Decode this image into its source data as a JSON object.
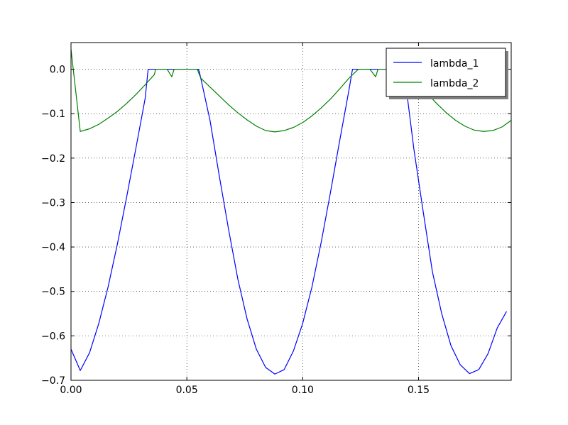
{
  "chart_data": {
    "type": "line",
    "title": "",
    "xlabel": "",
    "ylabel": "",
    "xlim": [
      0.0,
      0.19
    ],
    "ylim": [
      -0.7,
      0.06
    ],
    "x_ticks": [
      0.0,
      0.05,
      0.1,
      0.15
    ],
    "x_tick_labels": [
      "0.00",
      "0.05",
      "0.10",
      "0.15"
    ],
    "y_ticks": [
      0.0,
      -0.1,
      -0.2,
      -0.3,
      -0.4,
      -0.5,
      -0.6,
      -0.7
    ],
    "y_tick_labels": [
      "0.0",
      "−0.1",
      "−0.2",
      "−0.3",
      "−0.4",
      "−0.5",
      "−0.6",
      "−0.7"
    ],
    "grid": true,
    "legend_position": "top-right",
    "series": [
      {
        "name": "lambda_1",
        "color": "#0000ff",
        "points": [
          [
            0.0,
            -0.63
          ],
          [
            0.004,
            -0.678
          ],
          [
            0.008,
            -0.638
          ],
          [
            0.012,
            -0.572
          ],
          [
            0.016,
            -0.49
          ],
          [
            0.02,
            -0.394
          ],
          [
            0.024,
            -0.288
          ],
          [
            0.028,
            -0.178
          ],
          [
            0.032,
            -0.066
          ],
          [
            0.0333,
            0.0
          ],
          [
            0.055,
            0.0
          ],
          [
            0.0555,
            -0.008
          ],
          [
            0.06,
            -0.115
          ],
          [
            0.064,
            -0.24
          ],
          [
            0.068,
            -0.36
          ],
          [
            0.072,
            -0.472
          ],
          [
            0.076,
            -0.562
          ],
          [
            0.08,
            -0.63
          ],
          [
            0.084,
            -0.671
          ],
          [
            0.088,
            -0.686
          ],
          [
            0.092,
            -0.676
          ],
          [
            0.096,
            -0.634
          ],
          [
            0.1,
            -0.572
          ],
          [
            0.104,
            -0.49
          ],
          [
            0.108,
            -0.389
          ],
          [
            0.112,
            -0.277
          ],
          [
            0.116,
            -0.16
          ],
          [
            0.12,
            -0.046
          ],
          [
            0.1215,
            0.0
          ],
          [
            0.144,
            0.0
          ],
          [
            0.145,
            -0.055
          ],
          [
            0.148,
            -0.18
          ],
          [
            0.152,
            -0.32
          ],
          [
            0.156,
            -0.456
          ],
          [
            0.16,
            -0.55
          ],
          [
            0.164,
            -0.622
          ],
          [
            0.168,
            -0.665
          ],
          [
            0.172,
            -0.685
          ],
          [
            0.176,
            -0.676
          ],
          [
            0.18,
            -0.64
          ],
          [
            0.184,
            -0.582
          ],
          [
            0.188,
            -0.545
          ]
        ]
      },
      {
        "name": "lambda_2",
        "color": "#008000",
        "points": [
          [
            0.0,
            0.045
          ],
          [
            0.004,
            -0.14
          ],
          [
            0.008,
            -0.134
          ],
          [
            0.012,
            -0.124
          ],
          [
            0.016,
            -0.11
          ],
          [
            0.02,
            -0.095
          ],
          [
            0.024,
            -0.077
          ],
          [
            0.028,
            -0.057
          ],
          [
            0.032,
            -0.035
          ],
          [
            0.036,
            -0.012
          ],
          [
            0.0365,
            0.0
          ],
          [
            0.0415,
            0.0
          ],
          [
            0.0435,
            -0.017
          ],
          [
            0.0445,
            0.0
          ],
          [
            0.0545,
            0.0
          ],
          [
            0.056,
            -0.02
          ],
          [
            0.06,
            -0.04
          ],
          [
            0.064,
            -0.06
          ],
          [
            0.068,
            -0.08
          ],
          [
            0.072,
            -0.098
          ],
          [
            0.076,
            -0.114
          ],
          [
            0.08,
            -0.128
          ],
          [
            0.084,
            -0.138
          ],
          [
            0.088,
            -0.141
          ],
          [
            0.092,
            -0.138
          ],
          [
            0.096,
            -0.131
          ],
          [
            0.1,
            -0.12
          ],
          [
            0.104,
            -0.105
          ],
          [
            0.108,
            -0.087
          ],
          [
            0.112,
            -0.067
          ],
          [
            0.116,
            -0.044
          ],
          [
            0.12,
            -0.02
          ],
          [
            0.124,
            0.0
          ],
          [
            0.129,
            0.0
          ],
          [
            0.1315,
            -0.017
          ],
          [
            0.1325,
            0.0
          ],
          [
            0.142,
            0.0
          ],
          [
            0.146,
            -0.008
          ],
          [
            0.15,
            -0.033
          ],
          [
            0.154,
            -0.056
          ],
          [
            0.158,
            -0.078
          ],
          [
            0.162,
            -0.098
          ],
          [
            0.166,
            -0.115
          ],
          [
            0.17,
            -0.128
          ],
          [
            0.174,
            -0.137
          ],
          [
            0.178,
            -0.14
          ],
          [
            0.182,
            -0.138
          ],
          [
            0.186,
            -0.13
          ],
          [
            0.19,
            -0.115
          ]
        ]
      }
    ]
  }
}
